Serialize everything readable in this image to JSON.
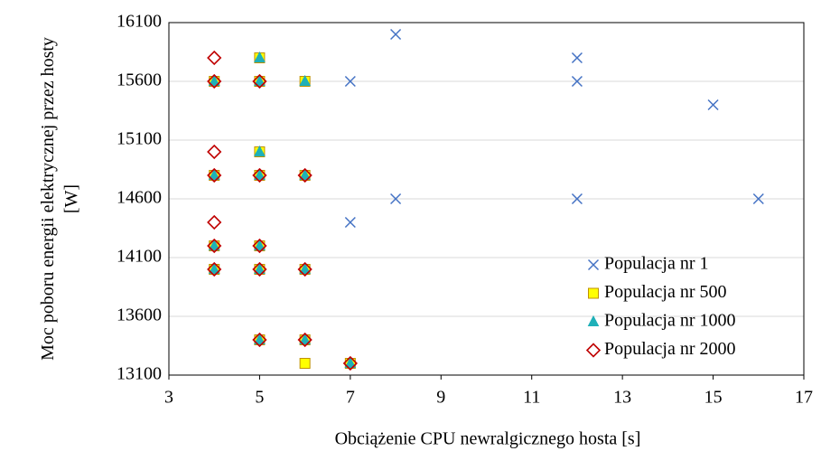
{
  "chart_data": {
    "type": "scatter",
    "xlabel": "Obciążenie CPU newralgicznego hosta  [s]",
    "ylabel": "Moc poboru energii elektrycznej przez hosty [W]",
    "xlim": [
      3,
      17
    ],
    "xticks": [
      3,
      5,
      7,
      9,
      11,
      13,
      15,
      17
    ],
    "ylim": [
      13100,
      16100
    ],
    "yticks": [
      13100,
      13600,
      14100,
      14600,
      15100,
      15600,
      16100
    ],
    "grid": true,
    "legend": "lower right",
    "series": [
      {
        "name": "Populacja nr 1",
        "color": "#4472c4",
        "marker": "x",
        "x": [
          8,
          12,
          7,
          12,
          15,
          8,
          12,
          16,
          7
        ],
        "y": [
          16000,
          15800,
          15600,
          15600,
          15400,
          14600,
          14600,
          14600,
          14400
        ]
      },
      {
        "name": "Populacja nr 500",
        "color": "#ffff00",
        "marker": "square",
        "x": [
          5,
          4,
          5,
          6,
          5,
          4,
          5,
          6,
          4,
          5,
          4,
          5,
          6,
          5,
          6,
          6,
          7
        ],
        "y": [
          15800,
          15600,
          15600,
          15600,
          15000,
          14800,
          14800,
          14800,
          14200,
          14200,
          14000,
          14000,
          14000,
          13400,
          13400,
          13200,
          13200
        ]
      },
      {
        "name": "Populacja nr 1000",
        "color": "#1fb0b8",
        "marker": "triangle",
        "x": [
          5,
          4,
          5,
          6,
          5,
          4,
          5,
          6,
          4,
          5,
          4,
          5,
          6,
          5,
          6,
          7
        ],
        "y": [
          15800,
          15600,
          15600,
          15600,
          15000,
          14800,
          14800,
          14800,
          14200,
          14200,
          14000,
          14000,
          14000,
          13400,
          13400,
          13200
        ]
      },
      {
        "name": "Populacja nr 2000",
        "color": "#c00000",
        "marker": "diamond",
        "x": [
          4,
          4,
          5,
          4,
          4,
          5,
          6,
          4,
          4,
          5,
          4,
          5,
          6,
          5,
          6,
          7
        ],
        "y": [
          15800,
          15600,
          15600,
          15000,
          14800,
          14800,
          14800,
          14400,
          14200,
          14200,
          14000,
          14000,
          14000,
          13400,
          13400,
          13200
        ]
      }
    ]
  }
}
